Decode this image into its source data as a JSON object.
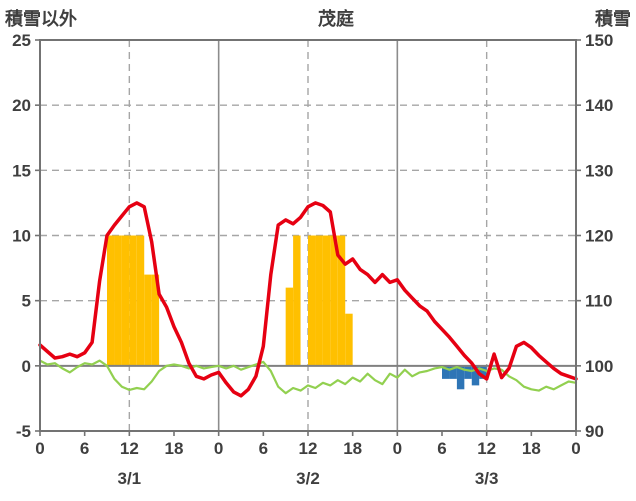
{
  "header": {
    "left_axis_title": "積雪以外",
    "title": "茂庭",
    "right_axis_title": "積雪"
  },
  "chart_data": {
    "type": "line",
    "title": "茂庭",
    "left_axis": {
      "label": "積雪以外",
      "min": -5,
      "max": 25,
      "ticks": [
        25,
        20,
        15,
        10,
        5,
        0,
        -5
      ],
      "dashed_grid": [
        20,
        15,
        10,
        5
      ],
      "zero": 0
    },
    "right_axis": {
      "label": "積雪",
      "min": 90,
      "max": 150,
      "ticks": [
        150,
        140,
        130,
        120,
        110,
        100,
        90
      ]
    },
    "x_axis": {
      "min": 0,
      "max": 72,
      "hour_ticks": [
        0,
        6,
        12,
        18,
        24,
        30,
        36,
        42,
        48,
        54,
        60,
        66,
        72
      ],
      "hour_labels": [
        "0",
        "6",
        "12",
        "18",
        "0",
        "6",
        "12",
        "18",
        "0",
        "6",
        "12",
        "18",
        "0"
      ],
      "solid_gridlines": [
        24,
        48
      ],
      "dashed_gridlines": [
        12,
        36,
        60
      ],
      "date_labels": [
        {
          "hour": 12,
          "label": "3/1"
        },
        {
          "hour": 36,
          "label": "3/2"
        },
        {
          "hour": 60,
          "label": "3/3"
        }
      ]
    },
    "colors": {
      "red": "#e60012",
      "green": "#92d050",
      "orange": "#ffc000",
      "blue": "#2e75b6",
      "grid": "#a6a6a6",
      "frame": "#737373",
      "zero_line": "#808080",
      "text": "#3f3f3f"
    },
    "series": [
      {
        "name": "orange-bars",
        "render": "bar",
        "axis": "left",
        "color": "#ffc000",
        "bars": [
          [
            9,
            10
          ],
          [
            10,
            10
          ],
          [
            11,
            10
          ],
          [
            12,
            10
          ],
          [
            13,
            10
          ],
          [
            14,
            7
          ],
          [
            15,
            7
          ],
          [
            33,
            6
          ],
          [
            34,
            10
          ],
          [
            36,
            10
          ],
          [
            37,
            10
          ],
          [
            38,
            10
          ],
          [
            39,
            10
          ],
          [
            40,
            10
          ],
          [
            41,
            4
          ]
        ]
      },
      {
        "name": "blue-bars",
        "render": "bar",
        "axis": "left",
        "color": "#2e75b6",
        "bars": [
          [
            54,
            -1
          ],
          [
            55,
            -1
          ],
          [
            56,
            -1.8
          ],
          [
            57,
            -1
          ],
          [
            58,
            -1.5
          ],
          [
            59,
            -1
          ]
        ]
      },
      {
        "name": "green-line",
        "render": "line",
        "axis": "right",
        "color": "#92d050",
        "width": 2.2,
        "points": [
          [
            0,
            100.8
          ],
          [
            1,
            100.2
          ],
          [
            2,
            100.4
          ],
          [
            3,
            99.6
          ],
          [
            4,
            99.0
          ],
          [
            5,
            99.8
          ],
          [
            6,
            100.4
          ],
          [
            7,
            100.2
          ],
          [
            8,
            100.8
          ],
          [
            9,
            100.0
          ],
          [
            10,
            98.0
          ],
          [
            11,
            96.8
          ],
          [
            12,
            96.3
          ],
          [
            13,
            96.6
          ],
          [
            14,
            96.4
          ],
          [
            15,
            97.6
          ],
          [
            16,
            99.2
          ],
          [
            17,
            100.0
          ],
          [
            18,
            100.2
          ],
          [
            19,
            100.0
          ],
          [
            20,
            99.6
          ],
          [
            21,
            100.0
          ],
          [
            22,
            99.6
          ],
          [
            23,
            99.8
          ],
          [
            24,
            100.0
          ],
          [
            25,
            99.6
          ],
          [
            26,
            100.0
          ],
          [
            27,
            99.4
          ],
          [
            28,
            99.8
          ],
          [
            29,
            100.2
          ],
          [
            30,
            100.6
          ],
          [
            31,
            99.2
          ],
          [
            32,
            96.8
          ],
          [
            33,
            95.8
          ],
          [
            34,
            96.6
          ],
          [
            35,
            96.2
          ],
          [
            36,
            97.0
          ],
          [
            37,
            96.6
          ],
          [
            38,
            97.4
          ],
          [
            39,
            97.0
          ],
          [
            40,
            97.8
          ],
          [
            41,
            97.2
          ],
          [
            42,
            98.2
          ],
          [
            43,
            97.6
          ],
          [
            44,
            98.8
          ],
          [
            45,
            97.8
          ],
          [
            46,
            97.2
          ],
          [
            47,
            98.8
          ],
          [
            48,
            98.2
          ],
          [
            49,
            99.4
          ],
          [
            50,
            98.4
          ],
          [
            51,
            99.0
          ],
          [
            52,
            99.2
          ],
          [
            53,
            99.6
          ],
          [
            54,
            99.8
          ],
          [
            55,
            99.4
          ],
          [
            56,
            99.8
          ],
          [
            57,
            99.4
          ],
          [
            58,
            99.2
          ],
          [
            59,
            99.6
          ],
          [
            60,
            99.2
          ],
          [
            61,
            99.6
          ],
          [
            62,
            99.4
          ],
          [
            63,
            98.4
          ],
          [
            64,
            97.8
          ],
          [
            65,
            96.8
          ],
          [
            66,
            96.4
          ],
          [
            67,
            96.2
          ],
          [
            68,
            96.8
          ],
          [
            69,
            96.4
          ],
          [
            70,
            97.0
          ],
          [
            71,
            97.6
          ],
          [
            72,
            97.4
          ]
        ]
      },
      {
        "name": "red-line",
        "render": "line",
        "axis": "left",
        "color": "#e60012",
        "width": 3.5,
        "points": [
          [
            0,
            1.6
          ],
          [
            1,
            1.1
          ],
          [
            2,
            0.6
          ],
          [
            3,
            0.7
          ],
          [
            4,
            0.9
          ],
          [
            5,
            0.7
          ],
          [
            6,
            1.0
          ],
          [
            7,
            1.8
          ],
          [
            8,
            6.5
          ],
          [
            9,
            10.0
          ],
          [
            10,
            10.8
          ],
          [
            11,
            11.5
          ],
          [
            12,
            12.2
          ],
          [
            13,
            12.5
          ],
          [
            14,
            12.2
          ],
          [
            15,
            9.5
          ],
          [
            16,
            5.5
          ],
          [
            17,
            4.5
          ],
          [
            18,
            3.0
          ],
          [
            19,
            1.8
          ],
          [
            20,
            0.2
          ],
          [
            21,
            -0.8
          ],
          [
            22,
            -1.0
          ],
          [
            23,
            -0.7
          ],
          [
            24,
            -0.5
          ],
          [
            25,
            -1.3
          ],
          [
            26,
            -2.0
          ],
          [
            27,
            -2.3
          ],
          [
            28,
            -1.8
          ],
          [
            29,
            -0.8
          ],
          [
            30,
            1.5
          ],
          [
            31,
            7.0
          ],
          [
            32,
            10.8
          ],
          [
            33,
            11.2
          ],
          [
            34,
            10.9
          ],
          [
            35,
            11.4
          ],
          [
            36,
            12.2
          ],
          [
            37,
            12.5
          ],
          [
            38,
            12.3
          ],
          [
            39,
            11.8
          ],
          [
            40,
            8.5
          ],
          [
            41,
            7.8
          ],
          [
            42,
            8.2
          ],
          [
            43,
            7.4
          ],
          [
            44,
            7.0
          ],
          [
            45,
            6.4
          ],
          [
            46,
            7.0
          ],
          [
            47,
            6.4
          ],
          [
            48,
            6.6
          ],
          [
            49,
            5.8
          ],
          [
            50,
            5.2
          ],
          [
            51,
            4.6
          ],
          [
            52,
            4.2
          ],
          [
            53,
            3.4
          ],
          [
            54,
            2.8
          ],
          [
            55,
            2.2
          ],
          [
            56,
            1.5
          ],
          [
            57,
            0.8
          ],
          [
            58,
            0.2
          ],
          [
            59,
            -0.6
          ],
          [
            60,
            -1.0
          ],
          [
            61,
            0.9
          ],
          [
            62,
            -0.9
          ],
          [
            63,
            -0.2
          ],
          [
            64,
            1.5
          ],
          [
            65,
            1.8
          ],
          [
            66,
            1.4
          ],
          [
            67,
            0.8
          ],
          [
            68,
            0.3
          ],
          [
            69,
            -0.2
          ],
          [
            70,
            -0.6
          ],
          [
            71,
            -0.8
          ],
          [
            72,
            -1.0
          ]
        ]
      }
    ]
  }
}
